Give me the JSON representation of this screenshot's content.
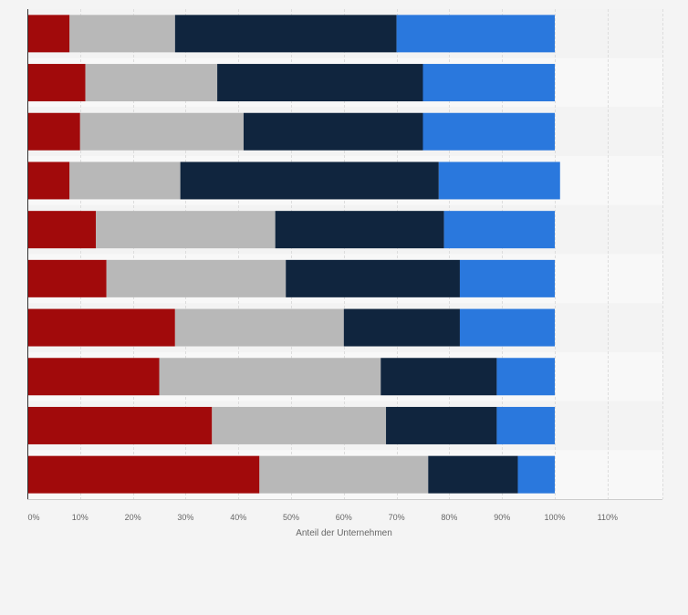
{
  "chart_data": {
    "type": "bar",
    "orientation": "horizontal",
    "stacked": true,
    "xlabel": "Anteil der Unternehmen",
    "xlim": [
      0,
      120
    ],
    "xticks": [
      0,
      10,
      20,
      30,
      40,
      50,
      60,
      70,
      80,
      90,
      100,
      110
    ],
    "xtick_labels": [
      "0%",
      "10%",
      "20%",
      "30%",
      "40%",
      "50%",
      "60%",
      "70%",
      "80%",
      "90%",
      "100%",
      "110%"
    ],
    "grid": true,
    "legend": "none",
    "colors": [
      "#a10a0b",
      "#b8b8b8",
      "#10253e",
      "#2a78dd"
    ],
    "series": [
      {
        "values": [
          8,
          11,
          10,
          8,
          13,
          15,
          28,
          25,
          35,
          44
        ]
      },
      {
        "values": [
          20,
          25,
          31,
          21,
          34,
          34,
          32,
          42,
          33,
          32
        ]
      },
      {
        "values": [
          42,
          39,
          34,
          49,
          32,
          33,
          22,
          22,
          21,
          17
        ]
      },
      {
        "values": [
          30,
          25,
          25,
          23,
          21,
          18,
          18,
          11,
          11,
          7
        ]
      }
    ]
  }
}
